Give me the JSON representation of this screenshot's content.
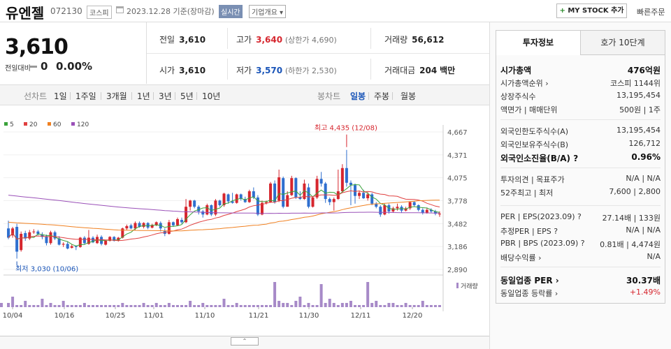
{
  "header": {
    "name": "유엔젤",
    "code": "072130",
    "market": "코스피",
    "date": "2023.12.28 기준(장마감)",
    "realtime": "실시간",
    "company": "기업개요 ▾",
    "mystock_plus": "+",
    "mystock": " MY STOCK 추가",
    "quick_order": "빠른주문"
  },
  "price": {
    "current": "3,610",
    "change_label": "전일대비",
    "change_value": "0",
    "change_pct": "0.00%"
  },
  "stats": {
    "prev_label": "전일",
    "prev": "3,610",
    "high_label": "고가",
    "high": "3,640",
    "upper_limit": "(상한가 4,690)",
    "volume_label": "거래량",
    "volume": "56,612",
    "open_label": "시가",
    "open": "3,610",
    "low_label": "저가",
    "low": "3,570",
    "lower_limit": "(하한가 2,530)",
    "amount_label": "거래대금",
    "amount": "204",
    "amount_unit": "백만"
  },
  "periods": {
    "label": "선차트",
    "items": [
      "1일",
      "1주일",
      "3개월",
      "1년",
      "3년",
      "5년",
      "10년"
    ]
  },
  "candles": {
    "label": "봉차트",
    "items": [
      "일봉",
      "주봉",
      "월봉"
    ],
    "selected": "일봉"
  },
  "legend": [
    {
      "name": "5",
      "color": "#3aa23a"
    },
    {
      "name": "20",
      "color": "#e04040"
    },
    {
      "name": "60",
      "color": "#f08020"
    },
    {
      "name": "120",
      "color": "#9a50b8"
    }
  ],
  "chart_data": {
    "type": "candlestick",
    "y_ticks": [
      "4,667",
      "4,371",
      "4,075",
      "3,778",
      "3,482",
      "3,186",
      "2,890"
    ],
    "ylim": [
      2890,
      4667
    ],
    "x_ticks": [
      "10/04",
      "10/16",
      "10/25",
      "11/01",
      "11/10",
      "11/21",
      "11/30",
      "12/11",
      "12/20"
    ],
    "max_annotation": "최고 4,435 (12/08)",
    "min_annotation": "최저 3,030 (10/06)",
    "volume_label": "거래량",
    "candles": [
      {
        "o": 3420,
        "c": 3300,
        "h": 3520,
        "l": 3280
      },
      {
        "o": 3330,
        "c": 3420,
        "h": 3440,
        "l": 3300
      },
      {
        "o": 3440,
        "c": 3120,
        "h": 3480,
        "l": 3030
      },
      {
        "o": 3140,
        "c": 3350,
        "h": 3380,
        "l": 3120
      },
      {
        "o": 3360,
        "c": 3290,
        "h": 3390,
        "l": 3260
      },
      {
        "o": 3290,
        "c": 3370,
        "h": 3400,
        "l": 3270
      },
      {
        "o": 3380,
        "c": 3380,
        "h": 3410,
        "l": 3350
      },
      {
        "o": 3380,
        "c": 3350,
        "h": 3400,
        "l": 3330
      },
      {
        "o": 3340,
        "c": 3310,
        "h": 3370,
        "l": 3280
      },
      {
        "o": 3320,
        "c": 3230,
        "h": 3340,
        "l": 3200
      },
      {
        "o": 3230,
        "c": 3370,
        "h": 3390,
        "l": 3210
      },
      {
        "o": 3370,
        "c": 3290,
        "h": 3390,
        "l": 3270
      },
      {
        "o": 3290,
        "c": 3210,
        "h": 3320,
        "l": 3200
      },
      {
        "o": 3210,
        "c": 3220,
        "h": 3240,
        "l": 3180
      },
      {
        "o": 3220,
        "c": 3160,
        "h": 3250,
        "l": 3150
      },
      {
        "o": 3170,
        "c": 3190,
        "h": 3210,
        "l": 3160
      },
      {
        "o": 3190,
        "c": 3180,
        "h": 3200,
        "l": 3140
      },
      {
        "o": 3180,
        "c": 3300,
        "h": 3310,
        "l": 3170
      },
      {
        "o": 3300,
        "c": 3230,
        "h": 3320,
        "l": 3210
      },
      {
        "o": 3220,
        "c": 3300,
        "h": 3400,
        "l": 3210
      },
      {
        "o": 3300,
        "c": 3240,
        "h": 3320,
        "l": 3230
      },
      {
        "o": 3230,
        "c": 3310,
        "h": 3340,
        "l": 3220
      },
      {
        "o": 3310,
        "c": 3220,
        "h": 3330,
        "l": 3200
      },
      {
        "o": 3210,
        "c": 3260,
        "h": 3270,
        "l": 3200
      },
      {
        "o": 3260,
        "c": 3310,
        "h": 3320,
        "l": 3250
      },
      {
        "o": 3310,
        "c": 3260,
        "h": 3320,
        "l": 3250
      },
      {
        "o": 3260,
        "c": 3300,
        "h": 3310,
        "l": 3250
      },
      {
        "o": 3300,
        "c": 3420,
        "h": 3430,
        "l": 3290
      },
      {
        "o": 3420,
        "c": 3450,
        "h": 3470,
        "l": 3400
      },
      {
        "o": 3460,
        "c": 3420,
        "h": 3480,
        "l": 3410
      },
      {
        "o": 3420,
        "c": 3490,
        "h": 3510,
        "l": 3400
      },
      {
        "o": 3490,
        "c": 3440,
        "h": 3510,
        "l": 3430
      },
      {
        "o": 3440,
        "c": 3490,
        "h": 3500,
        "l": 3420
      },
      {
        "o": 3490,
        "c": 3430,
        "h": 3500,
        "l": 3410
      },
      {
        "o": 3430,
        "c": 3460,
        "h": 3480,
        "l": 3420
      },
      {
        "o": 3460,
        "c": 3500,
        "h": 3510,
        "l": 3450
      },
      {
        "o": 3490,
        "c": 3420,
        "h": 3510,
        "l": 3380
      },
      {
        "o": 3390,
        "c": 3350,
        "h": 3420,
        "l": 3320
      },
      {
        "o": 3350,
        "c": 3500,
        "h": 3530,
        "l": 3340
      },
      {
        "o": 3500,
        "c": 3460,
        "h": 3510,
        "l": 3440
      },
      {
        "o": 3460,
        "c": 3540,
        "h": 3560,
        "l": 3450
      },
      {
        "o": 3530,
        "c": 3500,
        "h": 3560,
        "l": 3480
      },
      {
        "o": 3500,
        "c": 3700,
        "h": 3800,
        "l": 3490
      },
      {
        "o": 3700,
        "c": 3780,
        "h": 3790,
        "l": 3650
      },
      {
        "o": 3780,
        "c": 3700,
        "h": 3790,
        "l": 3680
      },
      {
        "o": 3700,
        "c": 3640,
        "h": 3720,
        "l": 3600
      },
      {
        "o": 3640,
        "c": 3600,
        "h": 3660,
        "l": 3560
      },
      {
        "o": 3600,
        "c": 3720,
        "h": 3740,
        "l": 3590
      },
      {
        "o": 3720,
        "c": 3600,
        "h": 3730,
        "l": 3580
      },
      {
        "o": 3600,
        "c": 3780,
        "h": 3800,
        "l": 3580
      },
      {
        "o": 3780,
        "c": 3720,
        "h": 3790,
        "l": 3700
      },
      {
        "o": 3720,
        "c": 3870,
        "h": 3880,
        "l": 3700
      },
      {
        "o": 3860,
        "c": 3770,
        "h": 3870,
        "l": 3740
      },
      {
        "o": 3770,
        "c": 3750,
        "h": 3880,
        "l": 3740
      },
      {
        "o": 3750,
        "c": 3860,
        "h": 3870,
        "l": 3740
      },
      {
        "o": 3860,
        "c": 3800,
        "h": 3870,
        "l": 3780
      },
      {
        "o": 3800,
        "c": 3760,
        "h": 3830,
        "l": 3750
      },
      {
        "o": 3760,
        "c": 3900,
        "h": 3920,
        "l": 3750
      },
      {
        "o": 3900,
        "c": 3820,
        "h": 3950,
        "l": 3800
      },
      {
        "o": 3820,
        "c": 3600,
        "h": 3850,
        "l": 3580
      },
      {
        "o": 3600,
        "c": 3750,
        "h": 3780,
        "l": 3590
      },
      {
        "o": 3750,
        "c": 3760,
        "h": 3780,
        "l": 3730
      },
      {
        "o": 3760,
        "c": 4000,
        "h": 4020,
        "l": 3750
      },
      {
        "o": 4000,
        "c": 3760,
        "h": 4040,
        "l": 3740
      },
      {
        "o": 3780,
        "c": 4080,
        "h": 4180,
        "l": 3760
      },
      {
        "o": 4070,
        "c": 3700,
        "h": 4090,
        "l": 3680
      },
      {
        "o": 3700,
        "c": 3850,
        "h": 3900,
        "l": 3700
      },
      {
        "o": 3850,
        "c": 4070,
        "h": 4100,
        "l": 3840
      },
      {
        "o": 4070,
        "c": 3820,
        "h": 4080,
        "l": 3800
      },
      {
        "o": 3820,
        "c": 3800,
        "h": 3900,
        "l": 3790
      },
      {
        "o": 3800,
        "c": 4000,
        "h": 4050,
        "l": 3790
      },
      {
        "o": 3950,
        "c": 3700,
        "h": 4000,
        "l": 3680
      },
      {
        "o": 3700,
        "c": 3820,
        "h": 3830,
        "l": 3690
      },
      {
        "o": 3820,
        "c": 4060,
        "h": 4100,
        "l": 3800
      },
      {
        "o": 4060,
        "c": 4000,
        "h": 4150,
        "l": 3960
      },
      {
        "o": 4000,
        "c": 3800,
        "h": 4020,
        "l": 3750
      },
      {
        "o": 3800,
        "c": 3760,
        "h": 3820,
        "l": 3720
      },
      {
        "o": 3760,
        "c": 3800,
        "h": 3820,
        "l": 3650
      },
      {
        "o": 3800,
        "c": 3900,
        "h": 4180,
        "l": 3790
      },
      {
        "o": 3900,
        "c": 4200,
        "h": 4250,
        "l": 3880
      },
      {
        "o": 4200,
        "c": 4010,
        "h": 4435,
        "l": 3960
      },
      {
        "o": 4010,
        "c": 3980,
        "h": 4040,
        "l": 3720
      },
      {
        "o": 3980,
        "c": 3840,
        "h": 4000,
        "l": 3740
      },
      {
        "o": 3840,
        "c": 3880,
        "h": 3910,
        "l": 3800
      },
      {
        "o": 3880,
        "c": 3810,
        "h": 3920,
        "l": 3800
      },
      {
        "o": 3810,
        "c": 3860,
        "h": 3890,
        "l": 3780
      },
      {
        "o": 3860,
        "c": 3740,
        "h": 3880,
        "l": 3720
      },
      {
        "o": 3740,
        "c": 3700,
        "h": 3760,
        "l": 3680
      },
      {
        "o": 3700,
        "c": 3600,
        "h": 3720,
        "l": 3570
      },
      {
        "o": 3600,
        "c": 3720,
        "h": 3740,
        "l": 3590
      },
      {
        "o": 3720,
        "c": 3640,
        "h": 3740,
        "l": 3610
      },
      {
        "o": 3640,
        "c": 3680,
        "h": 3700,
        "l": 3620
      },
      {
        "o": 3680,
        "c": 3700,
        "h": 3740,
        "l": 3650
      },
      {
        "o": 3700,
        "c": 3650,
        "h": 3720,
        "l": 3620
      },
      {
        "o": 3650,
        "c": 3680,
        "h": 3700,
        "l": 3640
      },
      {
        "o": 3680,
        "c": 3760,
        "h": 3770,
        "l": 3660
      },
      {
        "o": 3760,
        "c": 3720,
        "h": 3770,
        "l": 3700
      },
      {
        "o": 3720,
        "c": 3660,
        "h": 3730,
        "l": 3640
      },
      {
        "o": 3660,
        "c": 3620,
        "h": 3680,
        "l": 3600
      },
      {
        "o": 3620,
        "c": 3660,
        "h": 3690,
        "l": 3610
      },
      {
        "o": 3660,
        "c": 3640,
        "h": 3680,
        "l": 3620
      },
      {
        "o": 3640,
        "c": 3610,
        "h": 3660,
        "l": 3590
      },
      {
        "o": 3610,
        "c": 3610,
        "h": 3640,
        "l": 3570
      }
    ],
    "volume": [
      2,
      5,
      1,
      1,
      3,
      1,
      1,
      1,
      4,
      1,
      2,
      1,
      1,
      3,
      1,
      1,
      1,
      1,
      2,
      1,
      1,
      1,
      1,
      1,
      1,
      1,
      1,
      2,
      1,
      1,
      1,
      1,
      2,
      1,
      1,
      2,
      1,
      1,
      2,
      1,
      1,
      1,
      1,
      3,
      1,
      1,
      2,
      1,
      1,
      1,
      1,
      4,
      1,
      1,
      2,
      1,
      1,
      1,
      1,
      1,
      1,
      1,
      1,
      12,
      3,
      2,
      2,
      1,
      3,
      5,
      1,
      2,
      1,
      1,
      11,
      2,
      4,
      2,
      1,
      2,
      2,
      3,
      1,
      1,
      1,
      12,
      2,
      3,
      1,
      1,
      2,
      2,
      1,
      1,
      2,
      1,
      1,
      1,
      3,
      1,
      1,
      1,
      1,
      1,
      2,
      1,
      1,
      1
    ]
  },
  "panel": {
    "tabs": [
      "투자정보",
      "호가 10단계"
    ],
    "rows1": [
      {
        "label": "시가총액",
        "value": "476억원",
        "bold": true
      },
      {
        "label": "시가총액순위 ›",
        "value": "코스피 1144위"
      },
      {
        "label": "상장주식수",
        "value": "13,195,454"
      },
      {
        "label": "액면가 | 매매단위",
        "value": "500원 | 1주"
      }
    ],
    "rows2": [
      {
        "label": "외국인한도주식수(A)",
        "value": "13,195,454"
      },
      {
        "label": "외국인보유주식수(B)",
        "value": "126,712"
      },
      {
        "label": "외국인소진율(B/A) ?",
        "value": "0.96%",
        "bold": true
      }
    ],
    "rows3": [
      {
        "label": "투자의견 | 목표주가",
        "value": "N/A | N/A"
      },
      {
        "label": "52주최고 | 최저",
        "value": "7,600 | 2,800"
      }
    ],
    "rows4": [
      {
        "label": "PER | EPS(2023.09) ?",
        "value": "27.14배 | 133원"
      },
      {
        "label": "추정PER | EPS ?",
        "value": "N/A | N/A"
      },
      {
        "label": "PBR | BPS (2023.09) ?",
        "value": "0.81배 | 4,474원"
      },
      {
        "label": "배당수익률 ›",
        "value": "N/A"
      }
    ],
    "rows5": [
      {
        "label": "동일업종 PER ›",
        "value": "30.37배",
        "bold": true
      },
      {
        "label": "동일업종 등락률 ›",
        "value": "+1.49%",
        "red": true
      }
    ]
  },
  "bottom": {
    "handle": "⌃"
  }
}
